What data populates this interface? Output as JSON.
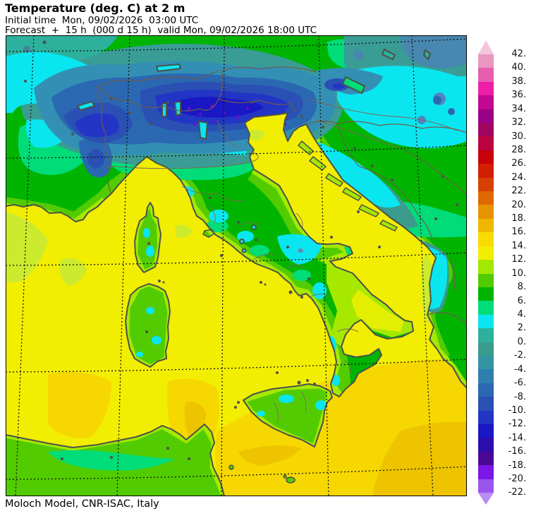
{
  "header": {
    "title": "Temperature (deg. C) at 2 m",
    "initial_time_line": "Initial time  Mon, 09/02/2026  03:00 UTC",
    "forecast_line": "Forecast  +  15 h  (000 d 15 h)  valid Mon, 09/02/2026 18:00 UTC"
  },
  "footer": {
    "credit": "Moloch Model, CNR-ISAC, Italy"
  },
  "colorbar": {
    "unit": "deg C",
    "labels": [
      "42.",
      "40.",
      "38.",
      "36.",
      "34.",
      "32.",
      "30.",
      "28.",
      "26.",
      "24.",
      "22.",
      "20.",
      "18.",
      "16.",
      "14.",
      "12.",
      "10.",
      "8.",
      "6.",
      "4.",
      "2.",
      "0.",
      "-2.",
      "-4.",
      "-6.",
      "-8.",
      "-10.",
      "-12.",
      "-14.",
      "-16.",
      "-18.",
      "-20.",
      "-22."
    ],
    "over_arrow_color": "#f2c7de",
    "under_arrow_color": "#b98df3",
    "segment_colors": [
      "#ea96c0",
      "#e55fae",
      "#ee1ea8",
      "#c20892",
      "#970287",
      "#a1035f",
      "#bb0340",
      "#c80008",
      "#d21f00",
      "#d74000",
      "#e06800",
      "#e89300",
      "#eeb800",
      "#f8dc00",
      "#f2ee02",
      "#a2e800",
      "#52cc00",
      "#00b400",
      "#00dc78",
      "#0ae6f0",
      "#2db19c",
      "#3b9b8d",
      "#3494a4",
      "#2e7fae",
      "#2b68b2",
      "#2a50b4",
      "#2335c5",
      "#1a17c4",
      "#2c0cab",
      "#4b0895",
      "#7a16e8",
      "#9b55ef"
    ]
  },
  "map_colors": {
    "sea_mild": "#f2ee02",
    "sea_warm": "#f6d800",
    "sea_warmer": "#eec400",
    "sea_cool": "#cdeb2e",
    "coast_line": "#4c5149",
    "border_line": "#6e5c49"
  }
}
